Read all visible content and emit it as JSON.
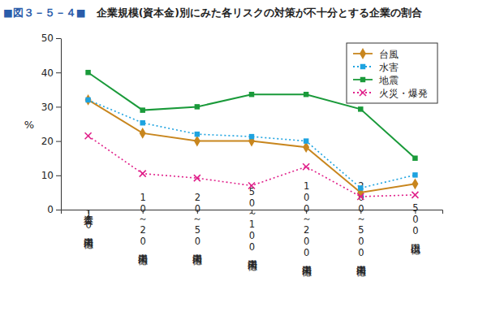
{
  "chart_data": {
    "type": "line",
    "title": "■図３－５－４■　企業規模(資本金)別にみた各リスクの対策が不十分とする企業の割合",
    "y_label": "%",
    "categories": [
      "資本金10億円未満",
      "10～20億円未満",
      "20～50億円未満",
      "50～100億円未満",
      "100～200億円未満",
      "200～500億円未満",
      "500億円以上"
    ],
    "series": [
      {
        "name": "台風",
        "color": "#c8861e",
        "marker": "diamond",
        "line_style": "solid",
        "values": [
          32,
          22.3,
          20,
          20,
          18.2,
          5,
          7.5
        ]
      },
      {
        "name": "水害",
        "color": "#1ea3e0",
        "marker": "square",
        "line_style": "dotted",
        "values": [
          32,
          25.3,
          22,
          21.3,
          20,
          6.3,
          10.1
        ]
      },
      {
        "name": "地震",
        "color": "#1a9a3a",
        "marker": "square",
        "line_style": "solid",
        "values": [
          40,
          29,
          30,
          33.6,
          33.6,
          29.3,
          15
        ]
      },
      {
        "name": "火災・爆発",
        "color": "#e0208a",
        "marker": "x",
        "line_style": "dotted",
        "values": [
          21.5,
          10.5,
          9.2,
          7,
          12.5,
          3.8,
          4.3
        ]
      }
    ],
    "ylim": [
      0,
      50
    ],
    "yticks": [
      0,
      10,
      20,
      30,
      40,
      50
    ],
    "grid": false,
    "legend": "top-right"
  }
}
